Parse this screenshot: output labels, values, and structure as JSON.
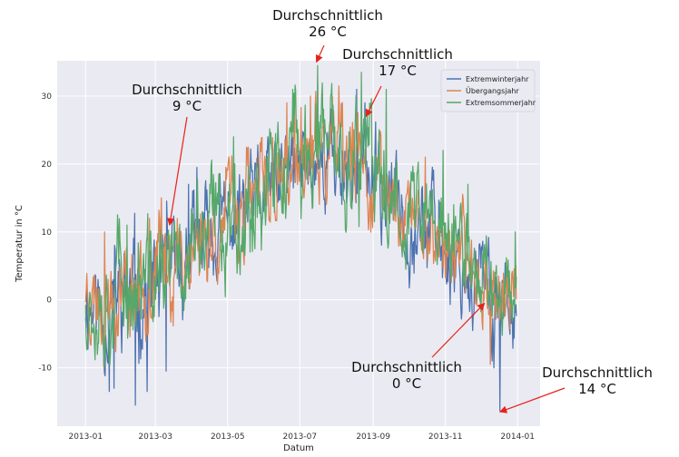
{
  "chart_data": {
    "type": "line",
    "xlabel": "Datum",
    "ylabel": "Temperatur in °C",
    "x_range": [
      "2012-12-08",
      "2014-01-20"
    ],
    "ylim": [
      -18.6,
      35.2
    ],
    "x_ticks": [
      "2013-01",
      "2013-03",
      "2013-05",
      "2013-07",
      "2013-09",
      "2013-11",
      "2014-01"
    ],
    "y_ticks": [
      -10,
      0,
      10,
      20,
      30
    ],
    "grid": true,
    "background": "#EAEAF2",
    "legend_position": "top-right",
    "series": [
      {
        "name": "Extremwinterjahr",
        "color": "#4C72B0",
        "x_start": "2013-01-01",
        "hours_per_point": 12,
        "seed": 11,
        "anchors": [
          [
            "2013-01-01",
            0.5,
            6
          ],
          [
            "2013-01-15",
            -1,
            7
          ],
          [
            "2013-02-15",
            0.5,
            7
          ],
          [
            "2013-03-15",
            4,
            6
          ],
          [
            "2013-04-15",
            9,
            6
          ],
          [
            "2013-05-15",
            13,
            6
          ],
          [
            "2013-06-15",
            17,
            6
          ],
          [
            "2013-07-15",
            21,
            6
          ],
          [
            "2013-08-15",
            20,
            6
          ],
          [
            "2013-09-15",
            15,
            6
          ],
          [
            "2013-10-15",
            11,
            6
          ],
          [
            "2013-11-15",
            5,
            6
          ],
          [
            "2013-12-15",
            0,
            6
          ],
          [
            "2013-12-31",
            1,
            5
          ]
        ],
        "spikes": [
          [
            "2013-01-21",
            -13.5
          ],
          [
            "2013-01-25",
            -13
          ],
          [
            "2013-02-12",
            -15.5
          ],
          [
            "2013-02-22",
            -13.5
          ],
          [
            "2013-03-10",
            -10.5
          ],
          [
            "2013-03-29",
            17
          ],
          [
            "2013-04-05",
            19.5
          ],
          [
            "2013-07-16",
            32
          ],
          [
            "2013-08-18",
            31
          ],
          [
            "2013-08-25",
            29
          ],
          [
            "2013-12-12",
            -10
          ],
          [
            "2013-12-17",
            -16.3
          ],
          [
            "2013-12-25",
            -4
          ]
        ]
      },
      {
        "name": "Übergangsjahr",
        "color": "#DD8452",
        "x_start": "2013-01-01",
        "hours_per_point": 12,
        "seed": 23,
        "anchors": [
          [
            "2013-01-01",
            2,
            5
          ],
          [
            "2013-01-15",
            1,
            6
          ],
          [
            "2013-02-15",
            3,
            6
          ],
          [
            "2013-03-15",
            5,
            6
          ],
          [
            "2013-04-15",
            10,
            6
          ],
          [
            "2013-05-15",
            14,
            6
          ],
          [
            "2013-06-15",
            18,
            6
          ],
          [
            "2013-07-15",
            21,
            6
          ],
          [
            "2013-08-15",
            20,
            6
          ],
          [
            "2013-09-15",
            15,
            6
          ],
          [
            "2013-10-15",
            11,
            5
          ],
          [
            "2013-11-15",
            6,
            5
          ],
          [
            "2013-12-15",
            1,
            5
          ],
          [
            "2013-12-31",
            0,
            5
          ]
        ],
        "spikes": [
          [
            "2013-01-05",
            -6.5
          ],
          [
            "2013-01-17",
            10
          ],
          [
            "2013-02-24",
            12
          ],
          [
            "2013-03-06",
            15
          ],
          [
            "2013-03-13",
            9.5
          ],
          [
            "2013-06-20",
            29
          ],
          [
            "2013-07-10",
            30
          ],
          [
            "2013-08-03",
            31.5
          ],
          [
            "2013-10-15",
            21
          ],
          [
            "2013-12-09",
            -9.5
          ],
          [
            "2013-12-16",
            3.5
          ]
        ]
      },
      {
        "name": "Extremsommerjahr",
        "color": "#55A868",
        "x_start": "2013-01-01",
        "hours_per_point": 12,
        "seed": 37,
        "anchors": [
          [
            "2013-01-01",
            1,
            6
          ],
          [
            "2013-01-15",
            1,
            7
          ],
          [
            "2013-02-15",
            2,
            7
          ],
          [
            "2013-03-15",
            4,
            7
          ],
          [
            "2013-04-15",
            10,
            7
          ],
          [
            "2013-05-15",
            14,
            7
          ],
          [
            "2013-06-15",
            19,
            7
          ],
          [
            "2013-07-15",
            22,
            7
          ],
          [
            "2013-08-15",
            21,
            7
          ],
          [
            "2013-09-15",
            16,
            7
          ],
          [
            "2013-10-15",
            12,
            6
          ],
          [
            "2013-11-15",
            7,
            6
          ],
          [
            "2013-12-15",
            2,
            5
          ],
          [
            "2013-12-31",
            3,
            5
          ]
        ],
        "spikes": [
          [
            "2013-01-28",
            12.5
          ],
          [
            "2013-02-05",
            11
          ],
          [
            "2013-05-06",
            24
          ],
          [
            "2013-06-25",
            31
          ],
          [
            "2013-07-16",
            34.5
          ],
          [
            "2013-07-27",
            30
          ],
          [
            "2013-08-22",
            33.5
          ],
          [
            "2013-09-12",
            31
          ],
          [
            "2013-10-30",
            22
          ],
          [
            "2013-11-20",
            17
          ],
          [
            "2013-12-30",
            10
          ],
          [
            "2013-11-08",
            14
          ]
        ]
      }
    ],
    "annotations": [
      {
        "lines": [
          "Durchschnittlich",
          "9 °C"
        ],
        "x": "2013-03-13",
        "y": 11
      },
      {
        "lines": [
          "Durchschnittlich",
          "26 °C"
        ],
        "x": "2013-07-15",
        "y": 35
      },
      {
        "lines": [
          "Durchschnittlich",
          "17 °C"
        ],
        "x": "2013-08-26",
        "y": 27
      },
      {
        "lines": [
          "Durchschnittlich",
          "0 °C"
        ],
        "x": "2013-12-04",
        "y": -0.5
      },
      {
        "lines": [
          "Durchschnittlich",
          "14 °C"
        ],
        "x": "2013-12-17",
        "y": -16.5
      }
    ],
    "annotation_arrow_color": "#E8221A"
  }
}
